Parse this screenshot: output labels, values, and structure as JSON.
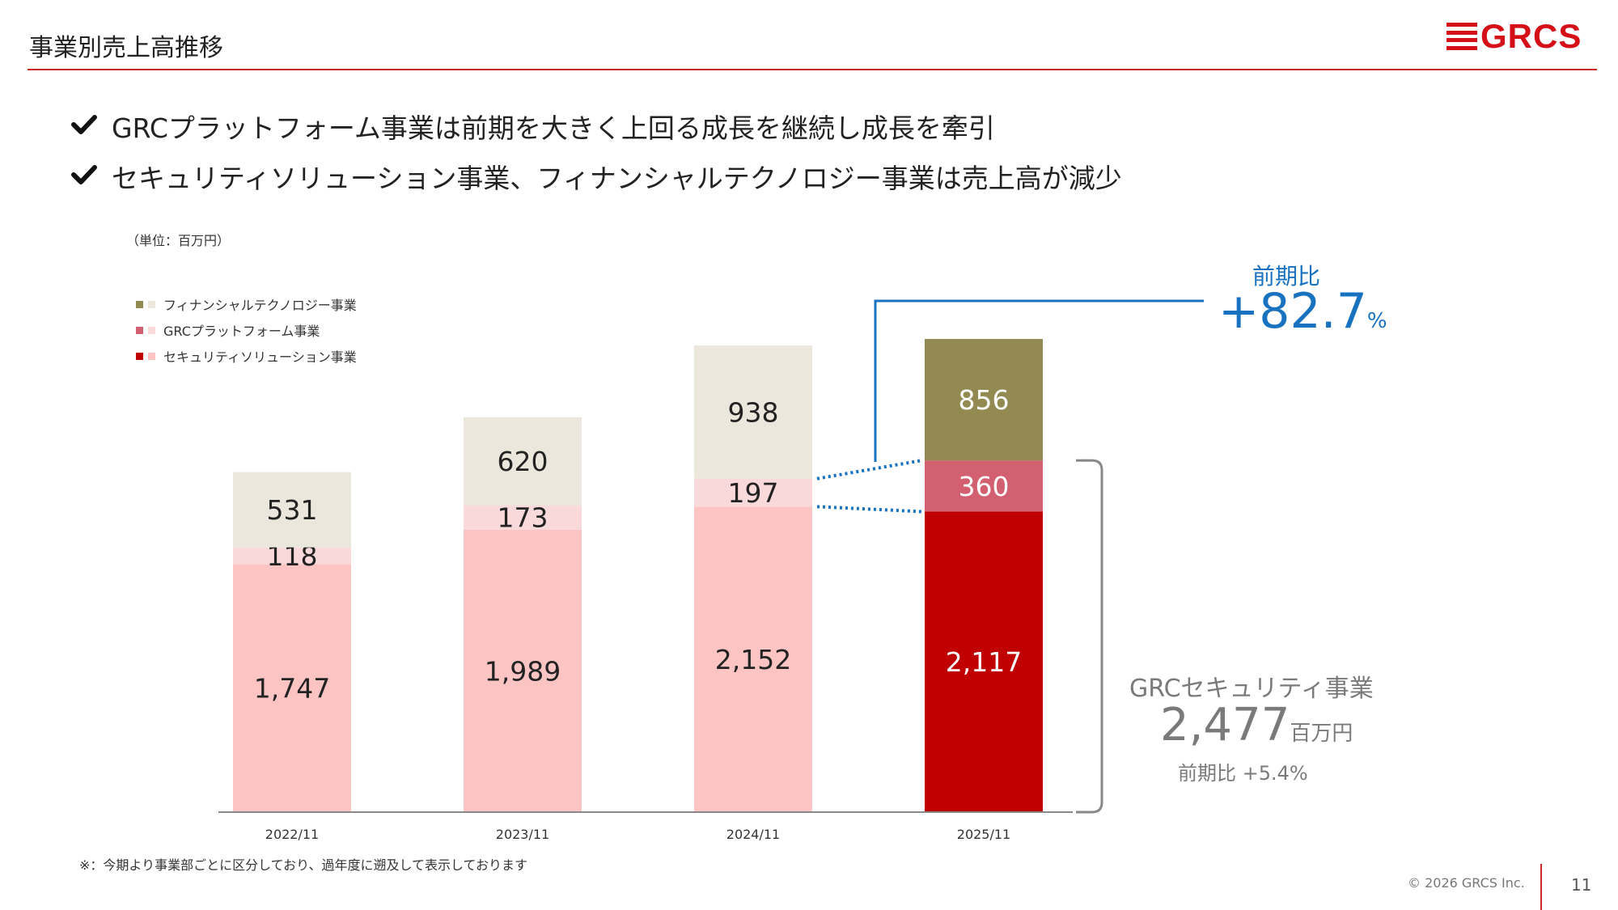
{
  "header": {
    "title": "事業別売上高推移",
    "logo_text": "GRCS",
    "brand_color": "#d40f17"
  },
  "bullets": [
    "GRCプラットフォーム事業は前期を大きく上回る成長を継続し成長を牽引",
    "セキュリティソリューション事業、フィナンシャルテクノロジー事業は売上高が減少"
  ],
  "unit_label": "（単位：百万円）",
  "chart_data": {
    "type": "bar",
    "stacked": true,
    "categories": [
      "2022/11",
      "2023/11",
      "2024/11",
      "2025/11"
    ],
    "series": [
      {
        "name": "セキュリティソリューション事業",
        "values": [
          1747,
          1989,
          2152,
          2117
        ],
        "labels": [
          "1,747",
          "1,989",
          "2,152",
          "2,117"
        ],
        "color": "#fcc5c4",
        "highlight_color": "#c00000"
      },
      {
        "name": "GRCプラットフォーム事業",
        "values": [
          118,
          173,
          197,
          360
        ],
        "labels": [
          "118",
          "173",
          "197",
          "360"
        ],
        "color": "#f9d9da",
        "highlight_color": "#d26070"
      },
      {
        "name": "フィナンシャルテクノロジー事業",
        "values": [
          531,
          620,
          938,
          856
        ],
        "labels": [
          "531",
          "620",
          "938",
          "856"
        ],
        "color": "#ebe7dc",
        "highlight_color": "#938a52"
      }
    ],
    "highlight_category": "2025/11",
    "legend_position": "top-left",
    "ylim": [
      0,
      3400
    ],
    "grid": false
  },
  "callouts": {
    "grc_platform": {
      "label": "前期比",
      "value": "+82.7",
      "unit": "%",
      "color": "#1872c0"
    },
    "grc_security": {
      "title": "GRCセキュリティ事業",
      "value": "2,477",
      "unit": "百万円",
      "yoy": "前期比 +5.4%"
    }
  },
  "footer": {
    "note": "※：今期より事業部ごとに区分しており、過年度に遡及して表示しております",
    "copyright": "© 2026 GRCS Inc.",
    "page_number": "11"
  }
}
